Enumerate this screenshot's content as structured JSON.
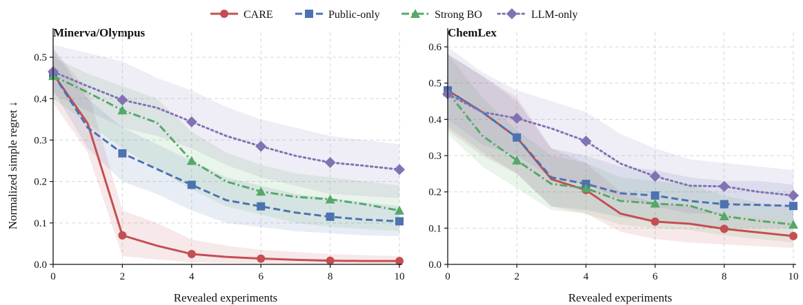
{
  "chart_data": {
    "type": "line",
    "legend": {
      "placement": "top-center",
      "entries": [
        "CARE",
        "Public-only",
        "Strong BO",
        "LLM-only"
      ]
    },
    "styles": {
      "CARE": {
        "color": "#c44e52",
        "dash": "solid",
        "marker": "circle"
      },
      "Public-only": {
        "color": "#4c72b0",
        "dash": "dashed",
        "marker": "square"
      },
      "Strong BO": {
        "color": "#55a868",
        "dash": "dashdot",
        "marker": "triangle"
      },
      "LLM-only": {
        "color": "#8172b3",
        "dash": "dotted",
        "marker": "diamond"
      }
    },
    "ylabel": "Normalized simple regret ↓",
    "panels": [
      {
        "title": "Minerva/Olympus",
        "xlabel": "Revealed experiments",
        "xlim": [
          0,
          10
        ],
        "ylim": [
          0,
          0.56
        ],
        "xticks": [
          0,
          2,
          4,
          6,
          8,
          10
        ],
        "yticks": [
          "0.0",
          "0.1",
          "0.2",
          "0.3",
          "0.4",
          "0.5"
        ],
        "grid": true,
        "series": [
          {
            "name": "CARE",
            "x": [
              0,
              1,
              2,
              3,
              4,
              5,
              6,
              7,
              8,
              9,
              10
            ],
            "y": [
              0.46,
              0.34,
              0.07,
              0.045,
              0.025,
              0.018,
              0.014,
              0.011,
              0.009,
              0.008,
              0.008
            ],
            "lower": [
              0.39,
              0.27,
              0.02,
              0.012,
              0.005,
              0.003,
              0.002,
              0.001,
              0.001,
              0.001,
              0.001
            ],
            "upper": [
              0.52,
              0.42,
              0.13,
              0.1,
              0.06,
              0.045,
              0.035,
              0.03,
              0.025,
              0.022,
              0.02
            ],
            "markers_at": [
              0,
              2,
              4,
              6,
              8,
              10
            ]
          },
          {
            "name": "Public-only",
            "x": [
              0,
              1,
              2,
              3,
              4,
              5,
              6,
              7,
              8,
              9,
              10
            ],
            "y": [
              0.46,
              0.33,
              0.268,
              0.23,
              0.192,
              0.155,
              0.14,
              0.125,
              0.115,
              0.108,
              0.104
            ],
            "lower": [
              0.42,
              0.28,
              0.2,
              0.17,
              0.13,
              0.1,
              0.09,
              0.08,
              0.075,
              0.07,
              0.068
            ],
            "upper": [
              0.52,
              0.4,
              0.33,
              0.29,
              0.25,
              0.21,
              0.19,
              0.17,
              0.16,
              0.15,
              0.14
            ],
            "markers_at": [
              0,
              2,
              4,
              6,
              8,
              10
            ]
          },
          {
            "name": "Strong BO",
            "x": [
              0,
              1,
              2,
              3,
              4,
              5,
              6,
              7,
              8,
              9,
              10
            ],
            "y": [
              0.455,
              0.415,
              0.372,
              0.342,
              0.25,
              0.2,
              0.176,
              0.163,
              0.157,
              0.145,
              0.13
            ],
            "lower": [
              0.4,
              0.34,
              0.28,
              0.23,
              0.18,
              0.14,
              0.12,
              0.1,
              0.09,
              0.085,
              0.08
            ],
            "upper": [
              0.5,
              0.46,
              0.43,
              0.4,
              0.32,
              0.27,
              0.24,
              0.22,
              0.21,
              0.2,
              0.19
            ],
            "markers_at": [
              0,
              2,
              4,
              6,
              8,
              10
            ]
          },
          {
            "name": "LLM-only",
            "x": [
              0,
              1,
              2,
              3,
              4,
              5,
              6,
              7,
              8,
              9,
              10
            ],
            "y": [
              0.465,
              0.43,
              0.397,
              0.378,
              0.344,
              0.31,
              0.285,
              0.262,
              0.246,
              0.238,
              0.229
            ],
            "lower": [
              0.41,
              0.37,
              0.33,
              0.31,
              0.28,
              0.24,
              0.21,
              0.19,
              0.17,
              0.165,
              0.16
            ],
            "upper": [
              0.53,
              0.51,
              0.49,
              0.45,
              0.42,
              0.38,
              0.35,
              0.33,
              0.31,
              0.3,
              0.29
            ],
            "markers_at": [
              0,
              2,
              4,
              6,
              8,
              10
            ]
          }
        ]
      },
      {
        "title": "ChemLex",
        "xlabel": "Revealed experiments",
        "xlim": [
          0,
          10
        ],
        "ylim": [
          0,
          0.64
        ],
        "xticks": [
          0,
          2,
          4,
          6,
          8,
          10
        ],
        "yticks": [
          "0.0",
          "0.1",
          "0.2",
          "0.3",
          "0.4",
          "0.5",
          "0.6"
        ],
        "grid": true,
        "series": [
          {
            "name": "CARE",
            "x": [
              0,
              1,
              2,
              3,
              4,
              5,
              6,
              7,
              8,
              9,
              10
            ],
            "y": [
              0.48,
              0.42,
              0.35,
              0.235,
              0.205,
              0.14,
              0.118,
              0.112,
              0.098,
              0.088,
              0.078
            ],
            "lower": [
              0.37,
              0.3,
              0.25,
              0.16,
              0.14,
              0.09,
              0.07,
              0.06,
              0.055,
              0.05,
              0.045
            ],
            "upper": [
              0.58,
              0.52,
              0.46,
              0.32,
              0.28,
              0.2,
              0.17,
              0.16,
              0.14,
              0.13,
              0.12
            ],
            "markers_at": [
              0,
              2,
              4,
              6,
              8,
              10
            ]
          },
          {
            "name": "Public-only",
            "x": [
              0,
              1,
              2,
              3,
              4,
              5,
              6,
              7,
              8,
              9,
              10
            ],
            "y": [
              0.48,
              0.42,
              0.35,
              0.24,
              0.222,
              0.196,
              0.19,
              0.175,
              0.166,
              0.164,
              0.161
            ],
            "lower": [
              0.38,
              0.31,
              0.25,
              0.16,
              0.15,
              0.13,
              0.12,
              0.11,
              0.1,
              0.1,
              0.1
            ],
            "upper": [
              0.58,
              0.52,
              0.45,
              0.32,
              0.3,
              0.27,
              0.26,
              0.24,
              0.23,
              0.23,
              0.22
            ],
            "markers_at": [
              0,
              2,
              4,
              6,
              8,
              10
            ]
          },
          {
            "name": "Strong BO",
            "x": [
              0,
              1,
              2,
              3,
              4,
              5,
              6,
              7,
              8,
              9,
              10
            ],
            "y": [
              0.475,
              0.355,
              0.287,
              0.222,
              0.21,
              0.175,
              0.168,
              0.162,
              0.133,
              0.12,
              0.11
            ],
            "lower": [
              0.36,
              0.27,
              0.21,
              0.15,
              0.14,
              0.11,
              0.1,
              0.095,
              0.08,
              0.07,
              0.06
            ],
            "upper": [
              0.58,
              0.46,
              0.37,
              0.3,
              0.28,
              0.24,
              0.23,
              0.22,
              0.19,
              0.17,
              0.16
            ],
            "markers_at": [
              0,
              2,
              4,
              6,
              8,
              10
            ]
          },
          {
            "name": "LLM-only",
            "x": [
              0,
              1,
              2,
              3,
              4,
              5,
              6,
              7,
              8,
              9,
              10
            ],
            "y": [
              0.47,
              0.42,
              0.403,
              0.375,
              0.34,
              0.278,
              0.243,
              0.217,
              0.215,
              0.2,
              0.19
            ],
            "lower": [
              0.4,
              0.33,
              0.3,
              0.24,
              0.22,
              0.18,
              0.16,
              0.14,
              0.14,
              0.13,
              0.12
            ],
            "upper": [
              0.6,
              0.53,
              0.48,
              0.45,
              0.42,
              0.36,
              0.32,
              0.29,
              0.28,
              0.27,
              0.26
            ],
            "markers_at": [
              0,
              2,
              4,
              6,
              8,
              10
            ]
          }
        ]
      }
    ]
  }
}
